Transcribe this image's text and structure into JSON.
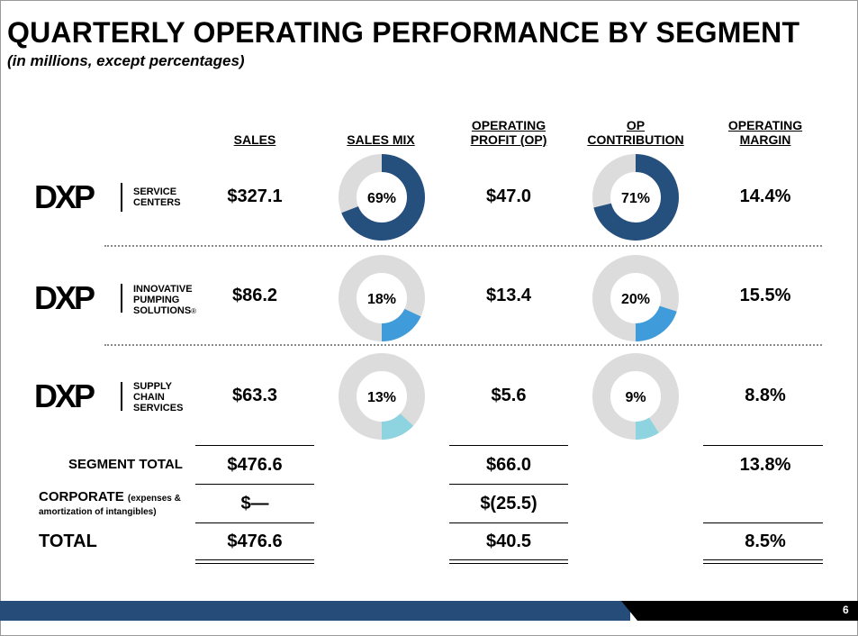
{
  "header": {
    "title": "QUARTERLY OPERATING PERFORMANCE BY SEGMENT",
    "subtitle": "(in millions, except percentages)"
  },
  "columns": {
    "sales": "SALES",
    "sales_mix": "SALES MIX",
    "op_line1": "OPERATING",
    "op_line2": "PROFIT (OP)",
    "contrib_line1": "OP",
    "contrib_line2": "CONTRIBUTION",
    "margin_line1": "OPERATING",
    "margin_line2": "MARGIN"
  },
  "segments": [
    {
      "logo": "DXP",
      "name_line1": "SERVICE",
      "name_line2": "CENTERS",
      "name_line3": "",
      "sales": "$327.1",
      "mix": "69%",
      "mix_value": 69,
      "op": "$47.0",
      "contrib": "71%",
      "contrib_value": 71,
      "margin": "14.4%",
      "color": "#254f7c"
    },
    {
      "logo": "DXP",
      "name_line1": "INNOVATIVE",
      "name_line2": "PUMPING",
      "name_line3": "SOLUTIONS",
      "sales": "$86.2",
      "mix": "18%",
      "mix_value": 18,
      "op": "$13.4",
      "contrib": "20%",
      "contrib_value": 20,
      "margin": "15.5%",
      "color": "#3f9bd9"
    },
    {
      "logo": "DXP",
      "name_line1": "SUPPLY",
      "name_line2": "CHAIN",
      "name_line3": "SERVICES",
      "sales": "$63.3",
      "mix": "13%",
      "mix_value": 13,
      "op": "$5.6",
      "contrib": "9%",
      "contrib_value": 9,
      "margin": "8.8%",
      "color": "#8ed3e0"
    }
  ],
  "registered_mark": "®",
  "totals": {
    "segment_total_label": "SEGMENT TOTAL",
    "segment_total_sales": "$476.6",
    "segment_total_op": "$66.0",
    "segment_total_margin": "13.8%",
    "corporate_label": "CORPORATE",
    "corporate_note1": "(expenses &",
    "corporate_note2": "amortization of intangibles)",
    "corporate_sales": "$—",
    "corporate_op": "$(25.5)",
    "total_label": "TOTAL",
    "total_sales": "$476.6",
    "total_op": "$40.5",
    "total_margin": "8.5%"
  },
  "footer": {
    "page_number": "6"
  },
  "colors": {
    "donut_rest": "#dcdcdc",
    "footer_blue": "#264d7a"
  }
}
